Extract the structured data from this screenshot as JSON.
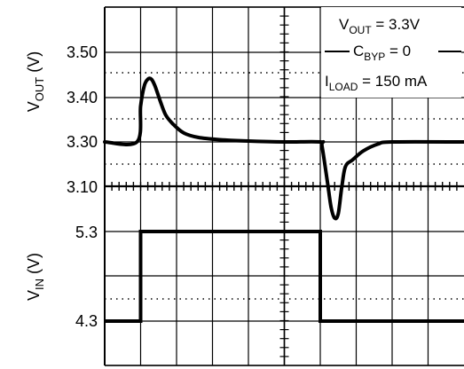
{
  "chart_data": {
    "type": "line",
    "grid": true,
    "time_divisions": 10,
    "annotations": {
      "vout_prefix": "V",
      "vout_sub": "OUT",
      "vout_value": " = 3.3V",
      "cbyp_prefix": "C",
      "cbyp_sub": "BYP",
      "cbyp_value": " = 0",
      "iload_prefix": "I",
      "iload_sub": "LOAD",
      "iload_value": " = 150 mA"
    },
    "top_panel": {
      "ylabel_main": "V",
      "ylabel_sub": "OUT",
      "ylabel_unit": " (V)",
      "ticks": [
        "3.50",
        "3.40",
        "3.30",
        "3.10"
      ],
      "series": [
        {
          "x": [
            0,
            0.9,
            1.0,
            1.1,
            1.2,
            1.3,
            1.4,
            1.55,
            1.7,
            1.9,
            2.2,
            2.6,
            3.2,
            4.0,
            5.0,
            6.0,
            6.05,
            6.2,
            6.3,
            6.4,
            6.5,
            6.6,
            6.7,
            6.9,
            7.2,
            7.6,
            8.0,
            10.0
          ],
          "y": [
            3.3,
            3.3,
            3.38,
            3.425,
            3.44,
            3.44,
            3.425,
            3.39,
            3.36,
            3.34,
            3.32,
            3.31,
            3.305,
            3.302,
            3.3,
            3.3,
            3.29,
            3.21,
            3.155,
            3.13,
            3.14,
            3.2,
            3.245,
            3.26,
            3.28,
            3.295,
            3.3,
            3.3
          ]
        }
      ]
    },
    "bottom_panel": {
      "ylabel_main": "V",
      "ylabel_sub": "IN",
      "ylabel_unit": " (V)",
      "ticks": [
        "5.3",
        "4.3"
      ],
      "series": [
        {
          "x": [
            0,
            1.0,
            1.0,
            6.0,
            6.0,
            10.0
          ],
          "y": [
            4.3,
            4.3,
            5.3,
            5.3,
            4.3,
            4.3
          ]
        }
      ]
    }
  }
}
